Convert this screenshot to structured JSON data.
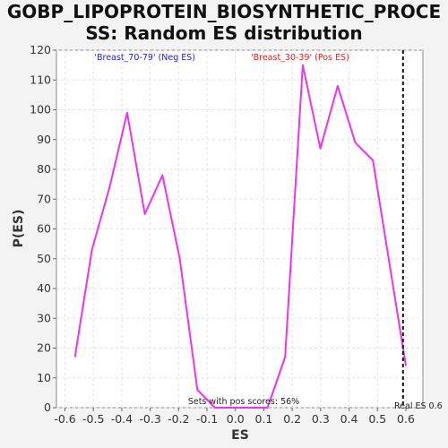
{
  "chart_data": {
    "type": "line",
    "title_line1": "GOBP_LIPOPROTEIN_BIOSYNTHETIC_PROCE",
    "title_line2": "SS: Random ES distribution",
    "xlabel": "ES",
    "ylabel": "P(ES)",
    "xlim": [
      -0.63,
      0.66
    ],
    "ylim": [
      0,
      120
    ],
    "xticks": [
      -0.6,
      -0.5,
      -0.4,
      -0.3,
      -0.2,
      -0.1,
      0.0,
      0.1,
      0.2,
      0.3,
      0.4,
      0.5,
      0.6
    ],
    "xtick_labels": [
      "-0.6",
      "-0.5",
      "-0.4",
      "-0.3",
      "-0.2",
      "-0.1",
      "0.0",
      "0.1",
      "0.2",
      "0.3",
      "0.4",
      "0.5",
      "0.6"
    ],
    "yticks": [
      0,
      10,
      20,
      30,
      40,
      50,
      60,
      70,
      80,
      90,
      100,
      110,
      120
    ],
    "grid": true,
    "series": [
      {
        "color": "#ee33ee",
        "x": [
          -0.565,
          -0.505,
          -0.443,
          -0.381,
          -0.319,
          -0.257,
          -0.196,
          -0.134,
          -0.072,
          -0.01,
          0.052,
          0.113,
          0.175,
          0.237,
          0.299,
          0.36,
          0.422,
          0.484,
          0.546,
          0.6
        ],
        "y": [
          17,
          53,
          74,
          99,
          65,
          78,
          50,
          6,
          0,
          0,
          0,
          0,
          17,
          115,
          87,
          108,
          89,
          83,
          46,
          14
        ]
      }
    ],
    "legend": {
      "neg_label": "'Breast_70-79' (Neg ES)",
      "neg_color": "#2222cc",
      "pos_label": "'Breast_30-39' (Pos ES)",
      "pos_color": "#dd2222",
      "placement": "top-center"
    },
    "annotation": "Sets with pos scores: 56%",
    "real_es": {
      "x": 0.59,
      "label": "Real ES 0.6"
    }
  }
}
